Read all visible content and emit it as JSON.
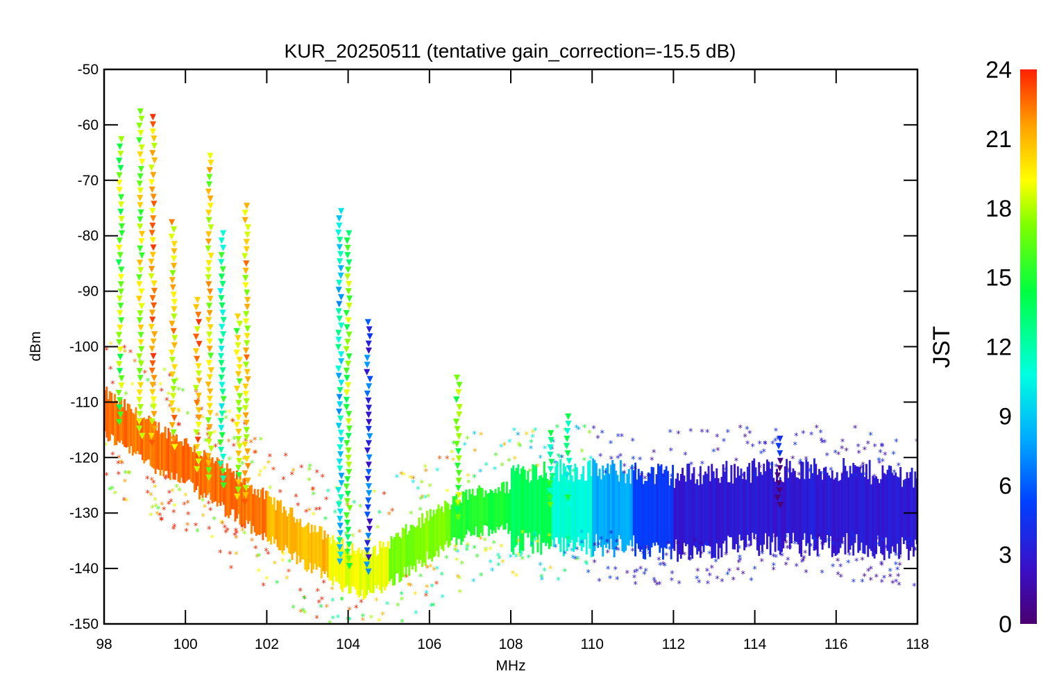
{
  "chart_data": {
    "type": "scatter",
    "title": "KUR_20250511 (tentative gain_correction=-15.5 dB)",
    "xlabel": "MHz",
    "ylabel": "dBm",
    "xlim": [
      98,
      118
    ],
    "ylim": [
      -150,
      -50
    ],
    "x_ticks": [
      "98",
      "100",
      "102",
      "104",
      "106",
      "108",
      "110",
      "112",
      "114",
      "116",
      "118"
    ],
    "y_ticks": [
      "-50",
      "-60",
      "-70",
      "-80",
      "-90",
      "-100",
      "-110",
      "-120",
      "-130",
      "-140",
      "-150"
    ],
    "colorbar": {
      "label": "JST",
      "range": [
        0,
        24
      ],
      "ticks": [
        "0",
        "3",
        "6",
        "9",
        "12",
        "15",
        "18",
        "21",
        "24"
      ],
      "colormap": [
        "#4a0070",
        "#3a10c8",
        "#0040ff",
        "#00a8ff",
        "#00ffe0",
        "#00ff40",
        "#80ff00",
        "#ffff00",
        "#ffa000",
        "#ff2000"
      ]
    },
    "noise_floor": {
      "description_points_x_MHz": [
        98,
        99,
        100,
        101,
        102,
        103,
        104,
        104.5,
        105,
        106,
        107,
        108,
        110,
        112,
        114,
        116,
        118
      ],
      "y_dBm": [
        -112,
        -117,
        -121,
        -126,
        -131,
        -136,
        -140,
        -141,
        -139,
        -134,
        -130,
        -129,
        -129,
        -130,
        -129,
        -129,
        -130
      ],
      "jst_hour_by_band": [
        {
          "x_from": 98,
          "x_to": 102,
          "jst": 22.5
        },
        {
          "x_from": 102,
          "x_to": 103.5,
          "jst": 21
        },
        {
          "x_from": 103.5,
          "x_to": 105,
          "jst": 19
        },
        {
          "x_from": 105,
          "x_to": 106.5,
          "jst": 17
        },
        {
          "x_from": 106.5,
          "x_to": 108,
          "jst": 15
        },
        {
          "x_from": 108,
          "x_to": 109,
          "jst": 14
        },
        {
          "x_from": 109,
          "x_to": 110,
          "jst": 11
        },
        {
          "x_from": 110,
          "x_to": 111,
          "jst": 8
        },
        {
          "x_from": 111,
          "x_to": 112,
          "jst": 5
        },
        {
          "x_from": 112,
          "x_to": 118,
          "jst": 3
        }
      ]
    },
    "peaks": [
      {
        "x": 98.4,
        "y": -63,
        "jst": 17
      },
      {
        "x": 98.9,
        "y": -58,
        "jst": 18
      },
      {
        "x": 99.2,
        "y": -59,
        "jst": 21
      },
      {
        "x": 99.7,
        "y": -78,
        "jst": 20
      },
      {
        "x": 100.3,
        "y": -92,
        "jst": 21
      },
      {
        "x": 100.6,
        "y": -66,
        "jst": 19
      },
      {
        "x": 100.9,
        "y": -80,
        "jst": 13
      },
      {
        "x": 101.3,
        "y": -95,
        "jst": 18
      },
      {
        "x": 101.5,
        "y": -75,
        "jst": 20
      },
      {
        "x": 103.8,
        "y": -76,
        "jst": 10
      },
      {
        "x": 104.0,
        "y": -80,
        "jst": 16
      },
      {
        "x": 104.5,
        "y": -96,
        "jst": 5
      },
      {
        "x": 106.7,
        "y": -106,
        "jst": 16
      },
      {
        "x": 109.0,
        "y": -116,
        "jst": 14
      },
      {
        "x": 109.4,
        "y": -113,
        "jst": 12
      },
      {
        "x": 114.6,
        "y": -117,
        "jst": 2
      }
    ]
  }
}
